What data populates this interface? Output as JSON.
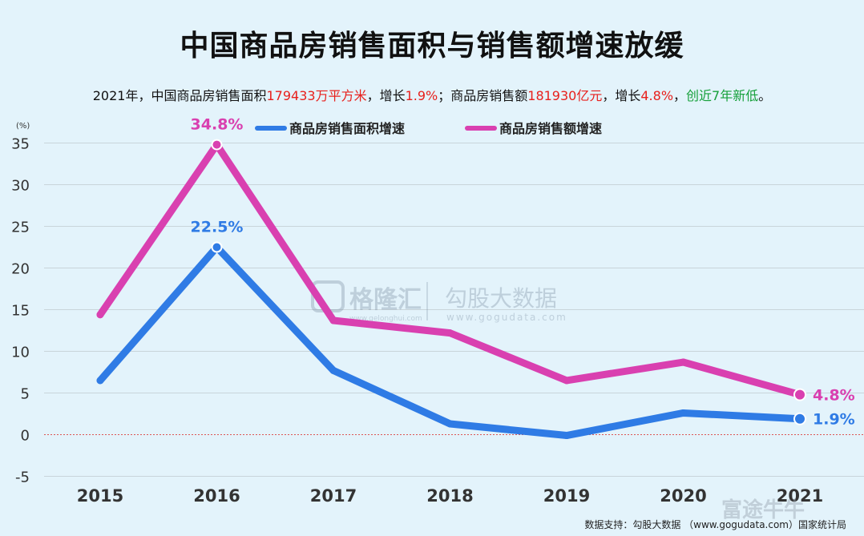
{
  "title": "中国商品房销售面积与销售额增速放缓",
  "subtitle": {
    "p1": "2021年，中国商品房销售面积",
    "p2": "179433万平方米",
    "p3": "，增长",
    "p4": "1.9%",
    "p5": "；商品房销售额",
    "p6": "181930亿元",
    "p7": "，增长",
    "p8": "4.8%",
    "p9": "，",
    "p10": "创近7年新低",
    "p11": "。"
  },
  "watermark": {
    "logo1": "格隆汇",
    "logo1_sub": "www.gelonghui.com",
    "logo2": "勾股大数据",
    "logo2_sub": "www.gogudata.com",
    "corner": "富途牛牛"
  },
  "source": "数据支持：勾股大数据 （www.gogudata.com）国家统计局",
  "colors": {
    "blue": "#2f7be5",
    "magenta": "#d940b0",
    "label_blue": "#2f7be5",
    "label_magenta": "#d940b0"
  },
  "chart_data": {
    "type": "line",
    "unit_label": "(%)",
    "categories": [
      "2015",
      "2016",
      "2017",
      "2018",
      "2019",
      "2020",
      "2021"
    ],
    "ylim": [
      -5,
      35
    ],
    "yticks": [
      -5,
      0,
      5,
      10,
      15,
      20,
      25,
      30,
      35
    ],
    "grid": true,
    "legend_position": "top",
    "series": [
      {
        "name": "商品房销售面积增速",
        "color": "#2f7be5",
        "values": [
          6.5,
          22.5,
          7.7,
          1.3,
          -0.1,
          2.6,
          1.9
        ]
      },
      {
        "name": "商品房销售额增速",
        "color": "#d940b0",
        "values": [
          14.4,
          34.8,
          13.7,
          12.2,
          6.5,
          8.7,
          4.8
        ]
      }
    ],
    "annotations": [
      {
        "series": 1,
        "index": 1,
        "text": "34.8%"
      },
      {
        "series": 0,
        "index": 1,
        "text": "22.5%"
      },
      {
        "series": 1,
        "index": 6,
        "text": "4.8%"
      },
      {
        "series": 0,
        "index": 6,
        "text": "1.9%"
      }
    ]
  }
}
